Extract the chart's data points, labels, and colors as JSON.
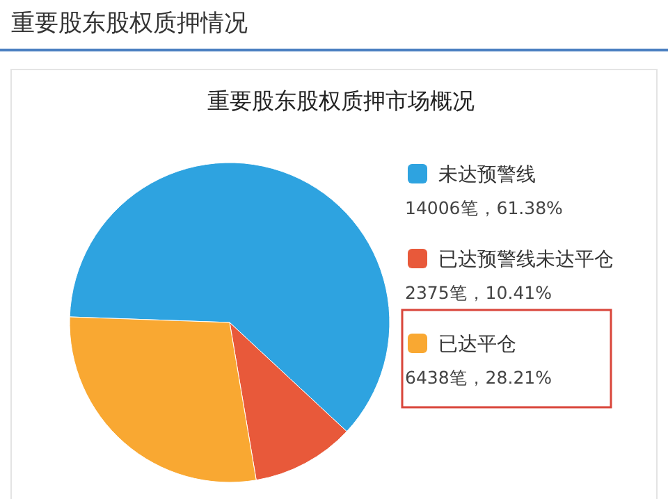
{
  "chart_data": {
    "type": "pie",
    "title": "重要股东股权质押情况",
    "subtitle": "重要股东股权质押市场概况",
    "categories": [
      "未达预警线",
      "已达预警线未达平仓",
      "已达平仓"
    ],
    "values": [
      14006,
      2375,
      6438
    ],
    "value_labels": [
      "14006笔，61.38%",
      "2375笔，10.41%",
      "6438笔，28.21%"
    ],
    "colors": [
      "#2ea3e0",
      "#e8593a",
      "#f9a832"
    ],
    "legend": "right"
  }
}
